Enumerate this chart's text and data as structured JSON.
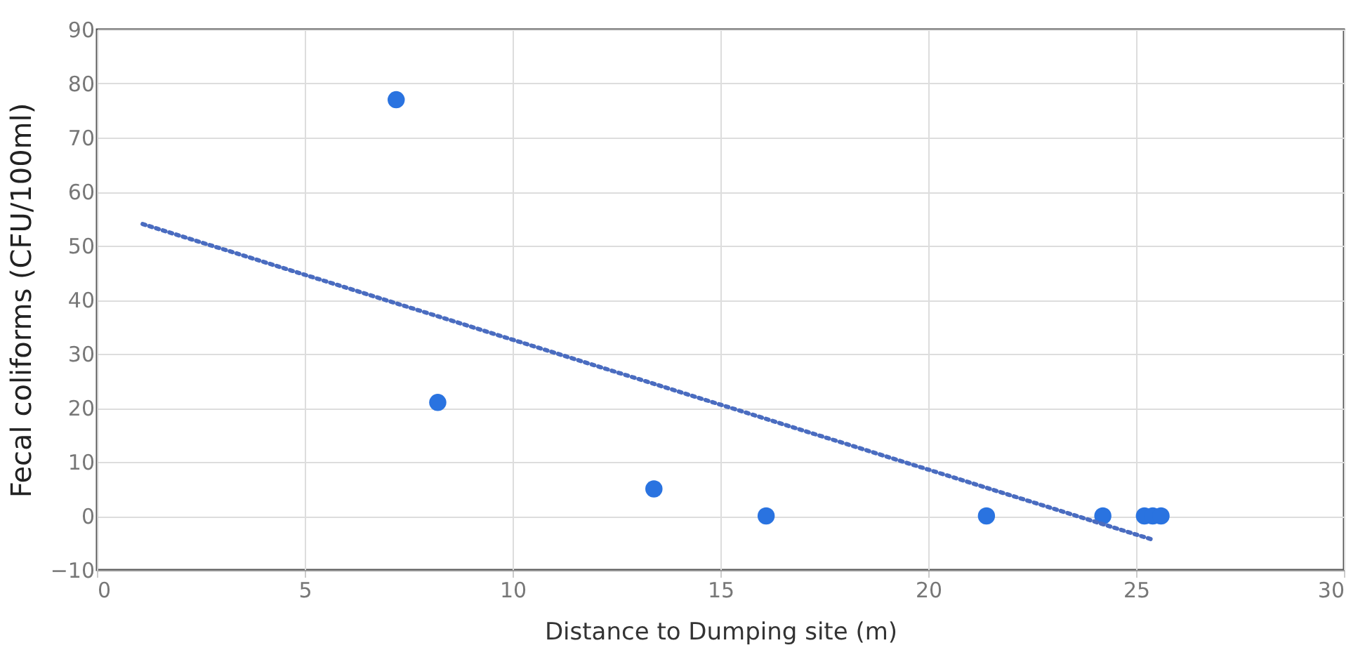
{
  "chart_data": {
    "type": "scatter",
    "xlabel": "Distance to Dumping site  (m)",
    "ylabel": "Fecal coliforms (CFU/100ml)",
    "xlim": [
      0,
      30
    ],
    "xticks": [
      0,
      5,
      10,
      15,
      20,
      25,
      30
    ],
    "ylim": [
      -10,
      90
    ],
    "yticks": [
      -10,
      0,
      10,
      20,
      30,
      40,
      50,
      60,
      70,
      80,
      90
    ],
    "grid": true,
    "series": [
      {
        "color": "#2a73e0",
        "marker": "circle",
        "x": [
          7.2,
          8.2,
          13.4,
          16.1,
          21.4,
          24.2,
          25.2,
          25.4,
          25.6
        ],
        "values": [
          77,
          21,
          5,
          0,
          0,
          0,
          0,
          0,
          0
        ]
      },
      {
        "type": "line",
        "color": "#4a6cc0",
        "line_style": "dotted",
        "x": [
          1.1,
          25.4
        ],
        "values": [
          54,
          -4.4
        ]
      }
    ]
  }
}
